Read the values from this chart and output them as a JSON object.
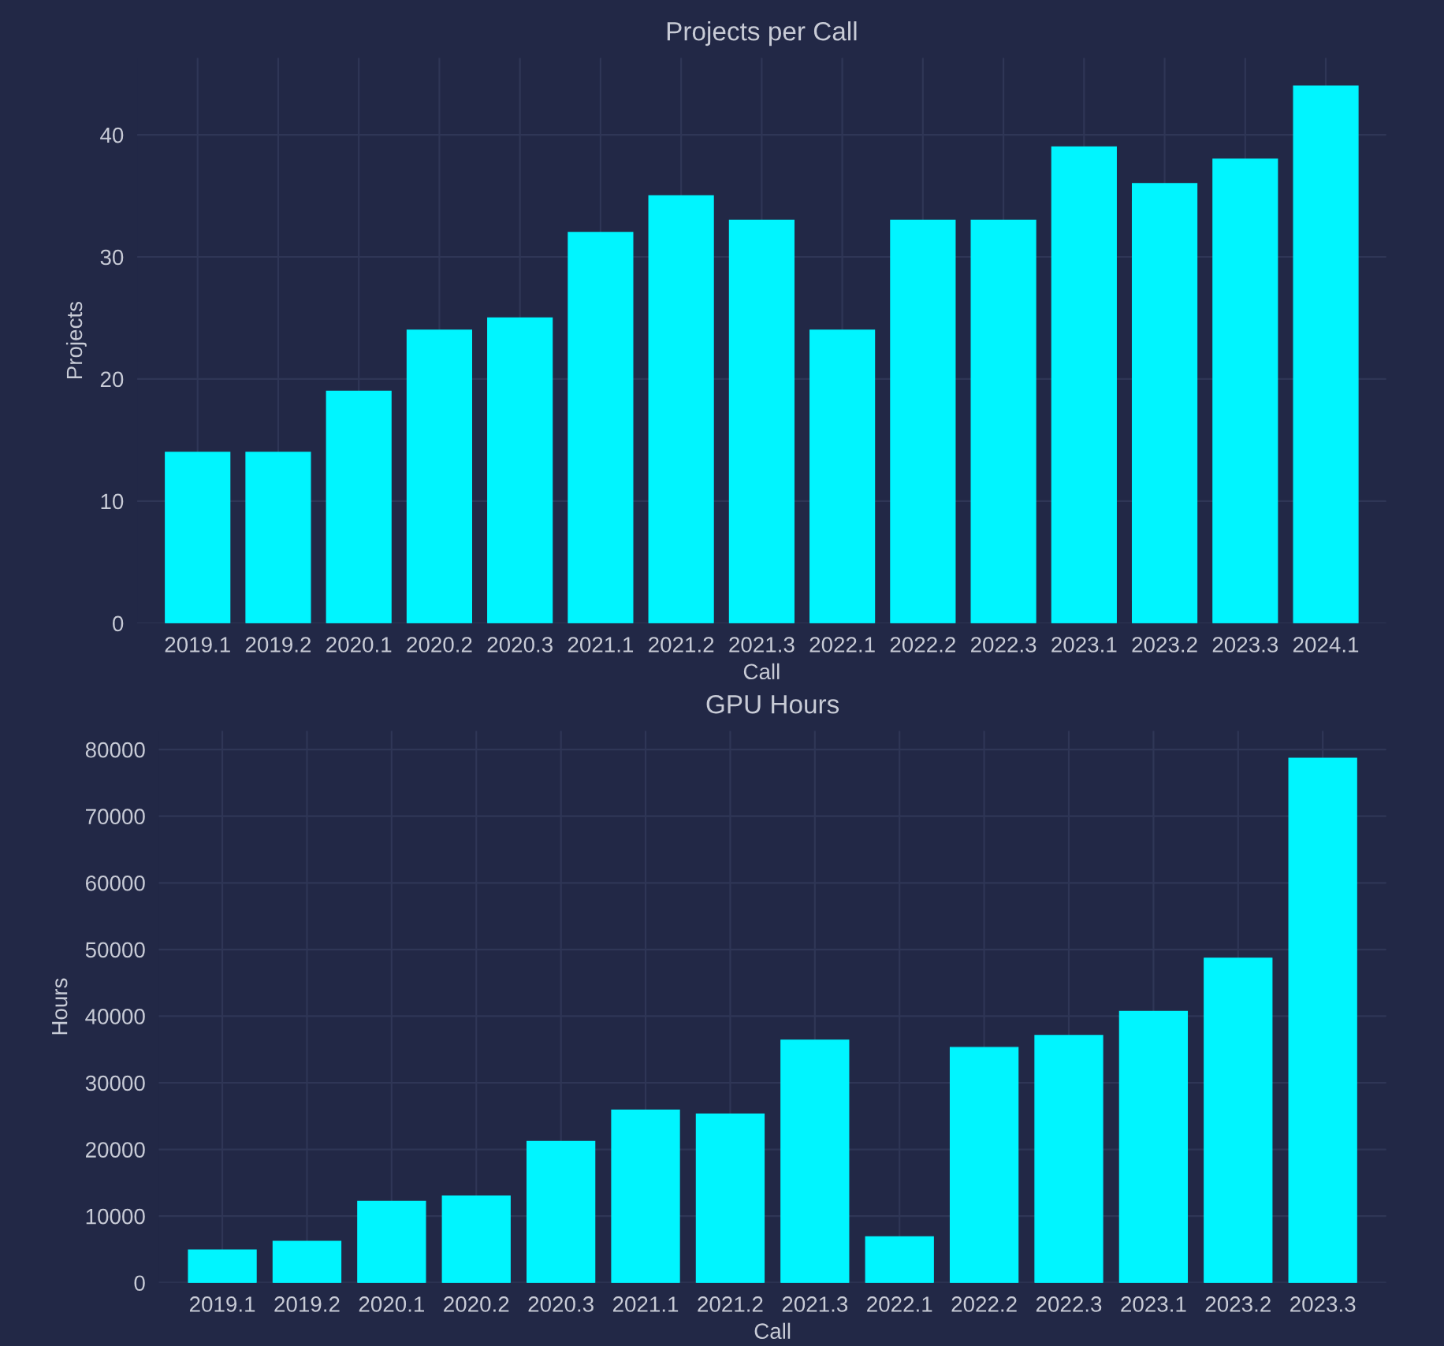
{
  "chart_data": [
    {
      "type": "bar",
      "title": "Projects per Call",
      "xlabel": "Call",
      "ylabel": "Projects",
      "categories": [
        "2019.1",
        "2019.2",
        "2020.1",
        "2020.2",
        "2020.3",
        "2021.1",
        "2021.2",
        "2021.3",
        "2022.1",
        "2022.2",
        "2022.3",
        "2023.1",
        "2023.2",
        "2023.3",
        "2024.1"
      ],
      "values": [
        14,
        14,
        19,
        24,
        25,
        32,
        35,
        33,
        24,
        33,
        33,
        39,
        36,
        38,
        44
      ],
      "color": "#00f5ff",
      "ylim": [
        0,
        46.3
      ],
      "yticks": [
        0,
        10,
        20,
        30,
        40
      ],
      "grid": true
    },
    {
      "type": "bar",
      "title": "GPU Hours",
      "xlabel": "Call",
      "ylabel": "Hours",
      "categories": [
        "2019.1",
        "2019.2",
        "2020.1",
        "2020.2",
        "2020.3",
        "2021.1",
        "2021.2",
        "2021.3",
        "2022.1",
        "2022.2",
        "2022.3",
        "2023.1",
        "2023.2",
        "2023.3"
      ],
      "values": [
        4900,
        6200,
        12200,
        13000,
        21200,
        25900,
        25300,
        36400,
        6900,
        35300,
        37100,
        40700,
        48700,
        78700
      ],
      "color": "#00f5ff",
      "ylim": [
        0,
        82800
      ],
      "yticks": [
        0,
        10000,
        20000,
        30000,
        40000,
        50000,
        60000,
        70000,
        80000
      ],
      "grid": true
    }
  ]
}
